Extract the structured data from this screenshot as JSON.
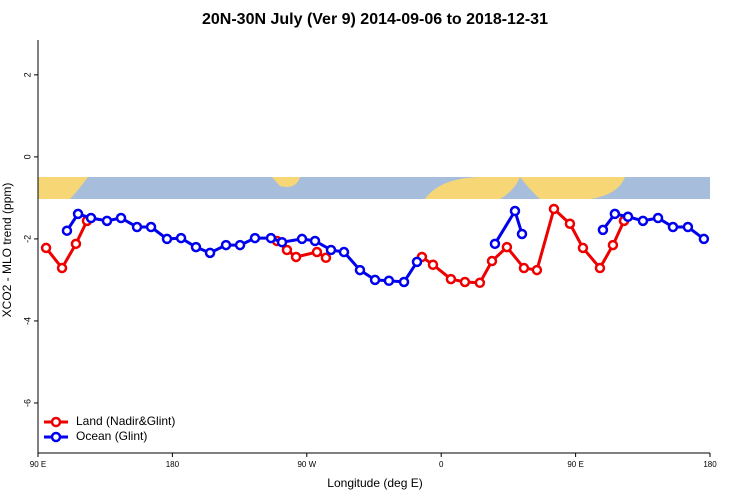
{
  "chart_data": {
    "type": "line",
    "title": "20N-30N July (Ver 9)   2014-09-06 to 2018-12-31",
    "x_label": "Longitude (deg E)",
    "y_label": "XCO2 - MLO trend (ppm)",
    "xlim": [
      90,
      540
    ],
    "xticks": [
      {
        "value": 90,
        "label": "90 E"
      },
      180,
      {
        "value": 270,
        "label": "90 W"
      },
      {
        "value": 360,
        "label": "0"
      },
      {
        "value": 450,
        "label": "90 E"
      },
      {
        "value": 540,
        "label": "180"
      }
    ],
    "ylim": [
      -7.22,
      2.85
    ],
    "yticks": [
      2,
      0,
      -2,
      -4,
      -6
    ],
    "legend": "bottom-left",
    "series": [
      {
        "name": "Land (Nadir&Glint)",
        "color": "#ee0000",
        "x": [
          95.4,
          106.1,
          115.4,
          122.8,
          null,
          250.0,
          256.7,
          262.8,
          276.8,
          282.8,
          null,
          347.1,
          354.5,
          366.5,
          375.9,
          385.9,
          394.0,
          404.0,
          415.4,
          424.1,
          435.5,
          446.2,
          454.9,
          466.3,
          475.0,
          482.4
        ],
        "values": [
          -2.22,
          -2.71,
          -2.12,
          -1.56,
          null,
          -2.05,
          -2.27,
          -2.44,
          -2.32,
          -2.46,
          null,
          -2.44,
          -2.63,
          -2.98,
          -3.05,
          -3.07,
          -2.54,
          -2.2,
          -2.71,
          -2.76,
          -1.27,
          -1.63,
          -2.22,
          -2.71,
          -2.15,
          -1.56
        ]
      },
      {
        "name": "Ocean (Glint)",
        "color": "#0000ee",
        "x": [
          109.4,
          116.8,
          125.5,
          136.2,
          145.6,
          156.3,
          165.7,
          176.4,
          185.8,
          195.8,
          205.2,
          215.9,
          225.3,
          235.3,
          246.0,
          253.4,
          266.8,
          275.5,
          286.2,
          294.9,
          305.6,
          315.7,
          325.0,
          335.1,
          343.8,
          null,
          396.0,
          409.4,
          414.1,
          null,
          468.3,
          476.3,
          485.1,
          495.1,
          505.2,
          515.2,
          525.2,
          535.9
        ],
        "values": [
          -1.8,
          -1.39,
          -1.49,
          -1.56,
          -1.49,
          -1.71,
          -1.71,
          -2.0,
          -1.98,
          -2.2,
          -2.34,
          -2.15,
          -2.15,
          -1.98,
          -1.98,
          -2.08,
          -2.0,
          -2.05,
          -2.27,
          -2.32,
          -2.76,
          -3.0,
          -3.02,
          -3.05,
          -2.56,
          null,
          -2.12,
          -1.32,
          -1.88,
          null,
          -1.78,
          -1.39,
          -1.46,
          -1.56,
          -1.49,
          -1.71,
          -1.71,
          -2.0
        ]
      }
    ]
  }
}
